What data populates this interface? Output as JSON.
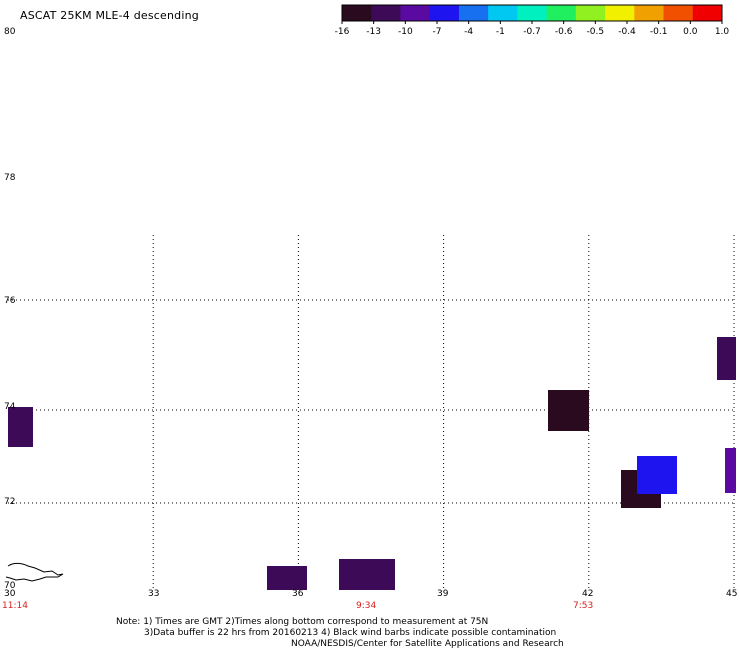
{
  "title": "ASCAT 25KM MLE-4 descending",
  "color_scale": {
    "labels": [
      "-16",
      "-13",
      "-10",
      "-7",
      "-4",
      "-1",
      "-0.7",
      "-0.6",
      "-0.5",
      "-0.4",
      "-0.1",
      "0.0",
      "1.0"
    ],
    "colors": [
      "#2a0a1e",
      "#3d0a58",
      "#5a0aa0",
      "#1e14f0",
      "#1670f0",
      "#00c8f0",
      "#00f0c0",
      "#20f060",
      "#90f020",
      "#f0f000",
      "#f0a000",
      "#f05000",
      "#f00000"
    ]
  },
  "latitude_labels": [
    "80",
    "78",
    "76",
    "74",
    "72",
    "70"
  ],
  "longitude_labels": [
    "30",
    "33",
    "36",
    "39",
    "42",
    "45"
  ],
  "time_labels": [
    "11:14",
    "9:34",
    "7:53"
  ],
  "notes": {
    "line1": "Note: 1) Times are GMT 2)Times along bottom correspond to measurement at 75N",
    "line2": "3)Data buffer is 22 hrs from 20160213 4) Black wind barbs indicate possible contamination",
    "line3": "NOAA/NESDIS/Center for Satellite Applications and Research"
  },
  "data_cells": [
    {
      "lon": 30.3,
      "lat": 73.6,
      "value": -13
    },
    {
      "lon": 36.2,
      "lat": 69.9,
      "value": -13
    },
    {
      "lon": 37.5,
      "lat": 70.0,
      "value": -12
    },
    {
      "lon": 41.6,
      "lat": 73.9,
      "value": -15
    },
    {
      "lon": 43.1,
      "lat": 72.3,
      "value": -15
    },
    {
      "lon": 43.3,
      "lat": 72.5,
      "value": -10
    },
    {
      "lon": 43.6,
      "lat": 72.6,
      "value": -5
    },
    {
      "lon": 45.0,
      "lat": 75.3,
      "value": -13
    },
    {
      "lon": 45.0,
      "lat": 72.7,
      "value": -9
    }
  ],
  "coastline_name": "coastline"
}
